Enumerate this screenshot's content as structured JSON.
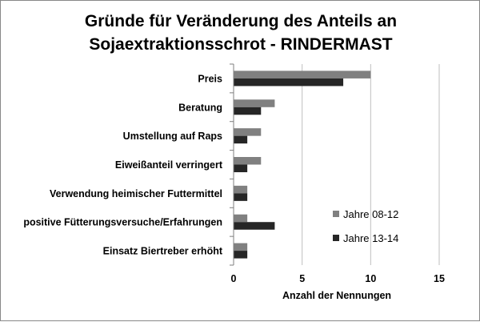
{
  "chart_data": {
    "type": "bar",
    "orientation": "horizontal",
    "title_lines": [
      "Gründe für Veränderung des Anteils an",
      "Sojaextraktionsschrot - RINDERMAST"
    ],
    "xlabel": "Anzahl der Nennungen",
    "ylabel": "",
    "xlim": [
      0,
      15
    ],
    "xticks": [
      0,
      5,
      10,
      15
    ],
    "grid": "vertical",
    "legend_position": "right",
    "categories": [
      "Preis",
      "Beratung",
      "Umstellung auf Raps",
      "Eiweißanteil verringert",
      "Verwendung heimischer Futtermittel",
      "positive Fütterungsversuche/Erfahrungen",
      "Einsatz Biertreber erhöht"
    ],
    "series": [
      {
        "name": "Jahre 08-12",
        "color": "#808080",
        "values": [
          10,
          3,
          2,
          2,
          1,
          1,
          1
        ]
      },
      {
        "name": "Jahre 13-14",
        "color": "#262626",
        "values": [
          8,
          2,
          1,
          1,
          1,
          3,
          1
        ]
      }
    ]
  }
}
